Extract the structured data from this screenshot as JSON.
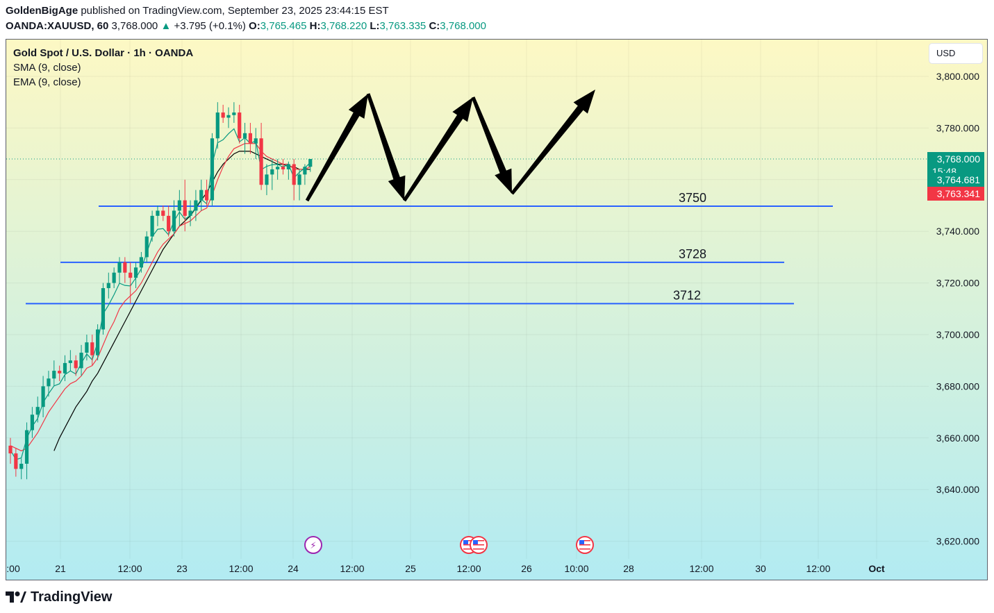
{
  "header": {
    "author": "GoldenBigAge",
    "published_text": " published on TradingView.com, September 23, 2025 23:44:15 EST",
    "symbol": "OANDA:XAUUSD, 60",
    "last": "3,768.000",
    "change": "+3.795 (+0.1%)",
    "open_label": "O:",
    "open": "3,765.465",
    "high_label": "H:",
    "high": "3,768.220",
    "low_label": "L:",
    "low": "3,763.335",
    "close_label": "C:",
    "close": "3,768.000"
  },
  "legend": {
    "title": "Gold Spot / U.S. Dollar · 1h · OANDA",
    "sma": "SMA (9, close)",
    "ema": "EMA (9, close)"
  },
  "currency": "USD",
  "footer": {
    "brand": "TradingView"
  },
  "colors": {
    "up": "#089981",
    "down": "#f23645",
    "sma": "#000000",
    "ema": "#f23645",
    "level_line": "#2962ff",
    "bg_top": "#fdf8c4",
    "bg_bottom": "#b2ebf2"
  },
  "chart_data": {
    "type": "candlestick",
    "ylim": [
      3612,
      3808
    ],
    "y_ticks": [
      3620,
      3640,
      3660,
      3680,
      3700,
      3720,
      3740,
      3760,
      3780,
      3800
    ],
    "y_tick_labels": [
      "3,620.000",
      "3,640.000",
      "3,660.000",
      "3,680.000",
      "3,700.000",
      "3,720.000",
      "3,740.000",
      "3,760.000",
      "3,780.000",
      "3,800.000"
    ],
    "x_tick_labels": [
      ":00",
      "21",
      "12:00",
      "23",
      "12:00",
      "24",
      "12:00",
      "25",
      "12:00",
      "26",
      "10:00",
      "28",
      "12:00",
      "30",
      "12:00",
      "Oct"
    ],
    "price_labels": [
      {
        "text": "3,768.000",
        "sub": "15:48",
        "value": 3768.0,
        "color": "#089981"
      },
      {
        "text": "3,764.681",
        "value": 3764.681,
        "color": "#089981"
      },
      {
        "text": "3,763.341",
        "value": 3763.341,
        "color": "#f23645"
      }
    ],
    "levels": [
      {
        "label": "3750",
        "value": 3750
      },
      {
        "label": "3728",
        "value": 3728
      },
      {
        "label": "3712",
        "value": 3712
      }
    ],
    "candles": [
      [
        3657,
        3660,
        3650,
        3654
      ],
      [
        3654,
        3656,
        3645,
        3648
      ],
      [
        3648,
        3652,
        3644,
        3650
      ],
      [
        3650,
        3666,
        3644,
        3663
      ],
      [
        3663,
        3672,
        3660,
        3669
      ],
      [
        3669,
        3676,
        3666,
        3672
      ],
      [
        3672,
        3684,
        3668,
        3680
      ],
      [
        3680,
        3686,
        3676,
        3683
      ],
      [
        3683,
        3690,
        3680,
        3686
      ],
      [
        3686,
        3688,
        3682,
        3685
      ],
      [
        3685,
        3692,
        3682,
        3689
      ],
      [
        3689,
        3694,
        3686,
        3690
      ],
      [
        3690,
        3692,
        3684,
        3687
      ],
      [
        3687,
        3696,
        3684,
        3693
      ],
      [
        3693,
        3700,
        3690,
        3697
      ],
      [
        3697,
        3700,
        3688,
        3692
      ],
      [
        3692,
        3704,
        3690,
        3702
      ],
      [
        3702,
        3720,
        3700,
        3718
      ],
      [
        3718,
        3724,
        3714,
        3720
      ],
      [
        3720,
        3726,
        3718,
        3724
      ],
      [
        3724,
        3730,
        3720,
        3728
      ],
      [
        3728,
        3730,
        3720,
        3724
      ],
      [
        3724,
        3728,
        3712,
        3722
      ],
      [
        3722,
        3728,
        3718,
        3726
      ],
      [
        3726,
        3732,
        3724,
        3730
      ],
      [
        3730,
        3740,
        3728,
        3738
      ],
      [
        3738,
        3748,
        3736,
        3746
      ],
      [
        3746,
        3750,
        3742,
        3748
      ],
      [
        3748,
        3750,
        3744,
        3746
      ],
      [
        3746,
        3750,
        3738,
        3740
      ],
      [
        3740,
        3752,
        3738,
        3748
      ],
      [
        3748,
        3756,
        3742,
        3752
      ],
      [
        3752,
        3760,
        3740,
        3746
      ],
      [
        3746,
        3752,
        3742,
        3748
      ],
      [
        3748,
        3756,
        3744,
        3752
      ],
      [
        3752,
        3760,
        3748,
        3756
      ],
      [
        3756,
        3760,
        3750,
        3752
      ],
      [
        3752,
        3778,
        3750,
        3776
      ],
      [
        3776,
        3790,
        3772,
        3786
      ],
      [
        3786,
        3789,
        3782,
        3784
      ],
      [
        3784,
        3788,
        3780,
        3785
      ],
      [
        3785,
        3790,
        3782,
        3786
      ],
      [
        3786,
        3789,
        3774,
        3776
      ],
      [
        3776,
        3782,
        3770,
        3778
      ],
      [
        3778,
        3782,
        3770,
        3774
      ],
      [
        3774,
        3780,
        3768,
        3776
      ],
      [
        3776,
        3782,
        3756,
        3758
      ],
      [
        3758,
        3766,
        3754,
        3762
      ],
      [
        3762,
        3768,
        3756,
        3764
      ],
      [
        3764,
        3768,
        3760,
        3765
      ],
      [
        3765,
        3768,
        3762,
        3764
      ],
      [
        3764,
        3767,
        3760,
        3766
      ],
      [
        3766,
        3768,
        3752,
        3758
      ],
      [
        3758,
        3764,
        3752,
        3762
      ],
      [
        3762,
        3766,
        3758,
        3765
      ],
      [
        3765,
        3768,
        3763,
        3768
      ]
    ],
    "sma": [
      null,
      null,
      null,
      null,
      null,
      null,
      null,
      null,
      3655,
      3660,
      3664,
      3668,
      3672,
      3675,
      3678,
      3682,
      3685,
      3689,
      3693,
      3697,
      3701,
      3705,
      3709,
      3713,
      3717,
      3721,
      3725,
      3729,
      3733,
      3736,
      3739,
      3742,
      3744,
      3746,
      3749,
      3752,
      3755,
      3759,
      3763,
      3766,
      3768,
      3770,
      3771,
      3771,
      3771,
      3770,
      3769,
      3768,
      3767,
      3766,
      3766,
      3765,
      3765,
      3764,
      3764,
      3764
    ],
    "ema": [
      3657,
      3656,
      3655,
      3656,
      3659,
      3662,
      3666,
      3670,
      3673,
      3676,
      3679,
      3681,
      3682,
      3684,
      3687,
      3688,
      3691,
      3696,
      3701,
      3705,
      3710,
      3713,
      3715,
      3717,
      3720,
      3724,
      3728,
      3732,
      3735,
      3737,
      3739,
      3742,
      3743,
      3744,
      3746,
      3748,
      3749,
      3754,
      3760,
      3765,
      3769,
      3772,
      3773,
      3774,
      3774,
      3774,
      3771,
      3769,
      3768,
      3767,
      3766,
      3766,
      3764,
      3764,
      3764,
      3765
    ],
    "events": [
      {
        "type": "flash",
        "label": "⚡"
      },
      {
        "type": "us-flag",
        "label": ""
      },
      {
        "type": "us-flag",
        "label": ""
      },
      {
        "type": "us-flag",
        "label": ""
      }
    ],
    "projection_path": [
      [
        3752,
        "low"
      ],
      [
        3790,
        "high"
      ],
      [
        3753,
        "low"
      ],
      [
        3788,
        "high"
      ],
      [
        3756,
        "low"
      ],
      [
        3792,
        "high"
      ]
    ]
  }
}
